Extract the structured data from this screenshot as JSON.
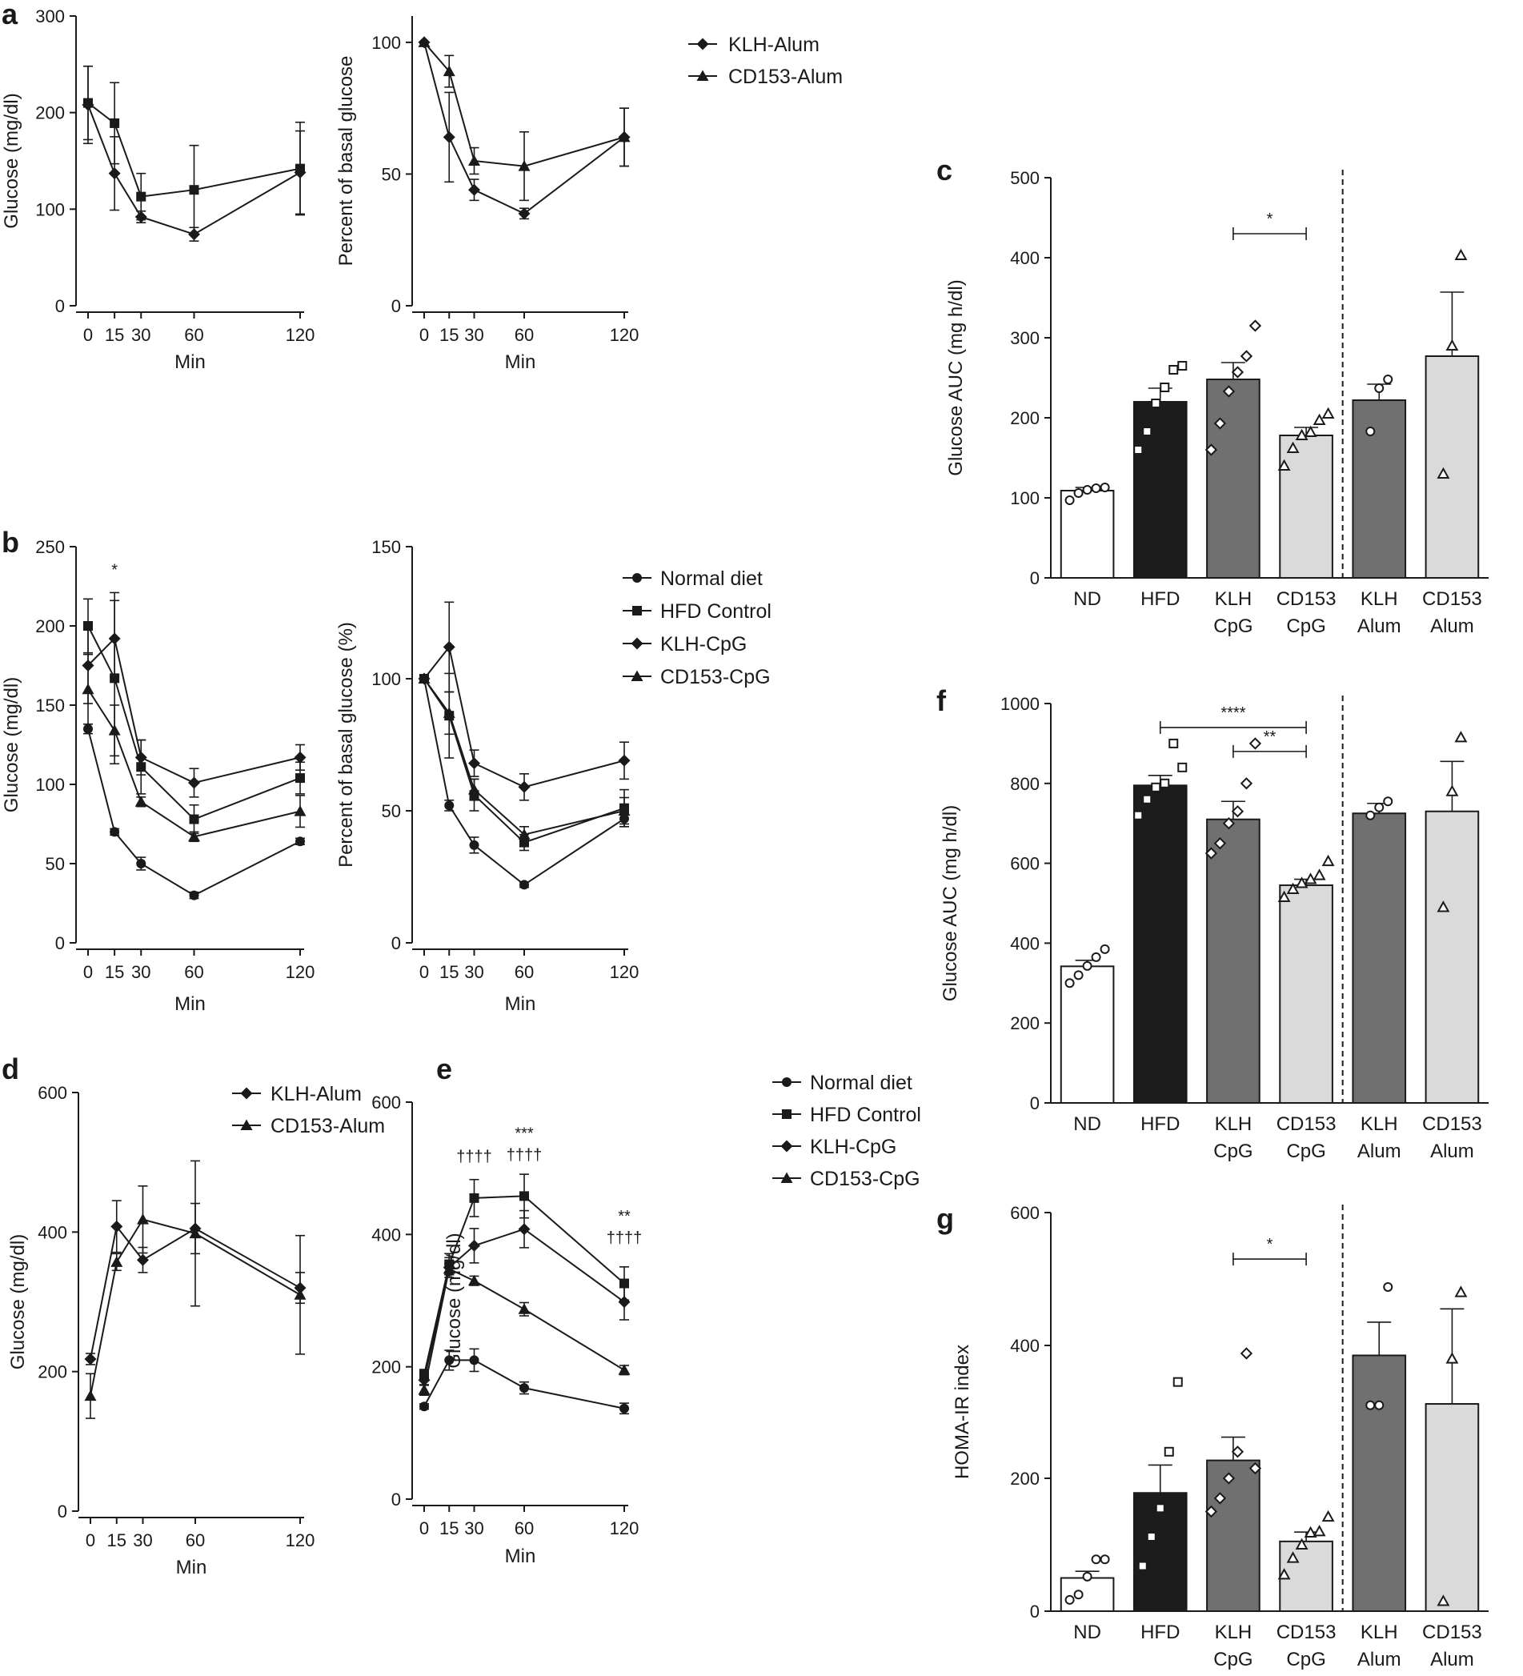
{
  "panel_letters": {
    "a": "a",
    "b": "b",
    "c": "c",
    "d": "d",
    "e": "e",
    "f": "f",
    "g": "g"
  },
  "chart_data": [
    {
      "id": "a-left",
      "type": "line",
      "letter": "a",
      "title": "",
      "xlabel": "Min",
      "ylabel": "Glucose (mg/dl)",
      "x": [
        0,
        15,
        30,
        60,
        120
      ],
      "xticks": [
        0,
        15,
        30,
        60,
        120
      ],
      "ylim": [
        0,
        300
      ],
      "yticks": [
        0,
        100,
        200,
        300
      ],
      "series": [
        {
          "name": "KLH-Alum",
          "marker": "diamond",
          "values": [
            208,
            137,
            92,
            74,
            138
          ],
          "errors": [
            40,
            38,
            6,
            7,
            43
          ]
        },
        {
          "name": "CD153-Alum",
          "marker": "square",
          "values": [
            210,
            189,
            113,
            120,
            142
          ],
          "errors": [
            38,
            42,
            24,
            46,
            48
          ]
        }
      ]
    },
    {
      "id": "a-right",
      "type": "line",
      "title": "",
      "xlabel": "Min",
      "ylabel": "Percent of basal glucose",
      "x": [
        0,
        15,
        30,
        60,
        120
      ],
      "xticks": [
        0,
        15,
        30,
        60,
        120
      ],
      "ylim": [
        0,
        110
      ],
      "yticks": [
        0,
        50,
        100
      ],
      "legend": {
        "position": "top-right",
        "entries": [
          "KLH-Alum",
          "CD153-Alum"
        ]
      },
      "series": [
        {
          "name": "KLH-Alum",
          "marker": "diamond",
          "values": [
            100,
            64,
            44,
            35,
            64
          ],
          "errors": [
            0,
            17,
            4,
            2,
            11
          ]
        },
        {
          "name": "CD153-Alum",
          "marker": "triangle",
          "values": [
            100,
            89,
            55,
            53,
            64
          ],
          "errors": [
            0,
            6,
            5,
            13,
            11
          ]
        }
      ]
    },
    {
      "id": "b-left",
      "type": "line",
      "letter": "b",
      "title": "",
      "xlabel": "Min",
      "ylabel": "Glucose (mg/dl)",
      "x": [
        0,
        15,
        30,
        60,
        120
      ],
      "xticks": [
        0,
        15,
        30,
        60,
        120
      ],
      "ylim": [
        0,
        250
      ],
      "yticks": [
        0,
        50,
        100,
        150,
        200,
        250
      ],
      "annotations": [
        {
          "text": "*",
          "x": 15,
          "y": 232
        }
      ],
      "series": [
        {
          "name": "Normal diet",
          "marker": "circle",
          "values": [
            135,
            70,
            50,
            30,
            64
          ],
          "errors": [
            3,
            2,
            4,
            2,
            2
          ]
        },
        {
          "name": "HFD Control",
          "marker": "square",
          "values": [
            200,
            167,
            111,
            78,
            104
          ],
          "errors": [
            17,
            54,
            17,
            9,
            10
          ]
        },
        {
          "name": "KLH-CpG",
          "marker": "diamond",
          "values": [
            175,
            192,
            117,
            101,
            117
          ],
          "errors": [
            24,
            24,
            11,
            9,
            8
          ]
        },
        {
          "name": "CD153-CpG",
          "marker": "triangle",
          "values": [
            160,
            134,
            89,
            67,
            83
          ],
          "errors": [
            22,
            16,
            3,
            3,
            10
          ]
        }
      ]
    },
    {
      "id": "b-right",
      "type": "line",
      "title": "",
      "xlabel": "Min",
      "ylabel": "Percent of basal glucose (%)",
      "x": [
        0,
        15,
        30,
        60,
        120
      ],
      "xticks": [
        0,
        15,
        30,
        60,
        120
      ],
      "ylim": [
        0,
        150
      ],
      "yticks": [
        0,
        50,
        100,
        150
      ],
      "legend": {
        "position": "top-right",
        "entries": [
          "Normal diet",
          "HFD Control",
          "KLH-CpG",
          "CD153-CpG"
        ]
      },
      "series": [
        {
          "name": "Normal diet",
          "marker": "circle",
          "values": [
            100,
            52,
            37,
            22,
            47
          ],
          "errors": [
            0,
            2,
            3,
            1,
            3
          ]
        },
        {
          "name": "HFD Control",
          "marker": "square",
          "values": [
            100,
            86,
            56,
            38,
            51
          ],
          "errors": [
            0,
            16,
            6,
            3,
            7
          ]
        },
        {
          "name": "KLH-CpG",
          "marker": "diamond",
          "values": [
            100,
            112,
            68,
            59,
            69
          ],
          "errors": [
            0,
            17,
            5,
            5,
            7
          ]
        },
        {
          "name": "CD153-CpG",
          "marker": "triangle",
          "values": [
            100,
            87,
            58,
            41,
            50
          ],
          "errors": [
            0,
            8,
            4,
            3,
            5
          ]
        }
      ]
    },
    {
      "id": "c",
      "type": "bar",
      "letter": "c",
      "title": "",
      "xlabel": "",
      "ylabel": "Glucose AUC (mg h/dl)",
      "categories": [
        [
          "ND"
        ],
        [
          "HFD"
        ],
        [
          "KLH",
          "CpG"
        ],
        [
          "CD153",
          "CpG"
        ],
        [
          "KLH",
          "Alum"
        ],
        [
          "CD153",
          "Alum"
        ]
      ],
      "values": [
        109,
        220,
        248,
        178,
        222,
        277
      ],
      "errors": [
        4,
        17,
        21,
        10,
        20,
        80
      ],
      "bar_colors": [
        "#ffffff",
        "#1c1c1c",
        "#707070",
        "#dadada",
        "#707070",
        "#dadada"
      ],
      "points": [
        [
          97,
          106,
          110,
          112,
          113
        ],
        [
          160,
          183,
          218,
          238,
          260,
          265
        ],
        [
          160,
          193,
          233,
          257,
          277,
          315
        ],
        [
          140,
          162,
          178,
          182,
          197,
          205
        ],
        [
          183,
          237,
          248
        ],
        [
          130,
          290,
          403
        ]
      ],
      "point_markers": [
        "circle",
        "square",
        "diamond",
        "triangle",
        "circle",
        "triangle"
      ],
      "ylim": [
        0,
        500
      ],
      "yticks": [
        0,
        100,
        200,
        300,
        400,
        500
      ],
      "divider_after": 3,
      "significance": [
        {
          "from": 2,
          "to": 3,
          "y": 430,
          "label": "*"
        }
      ]
    },
    {
      "id": "d",
      "type": "line",
      "letter": "d",
      "title": "",
      "xlabel": "Min",
      "ylabel": "Glucose (mg/dl)",
      "x": [
        0,
        15,
        30,
        60,
        120
      ],
      "xticks": [
        0,
        15,
        30,
        60,
        120
      ],
      "ylim": [
        0,
        600
      ],
      "yticks": [
        0,
        200,
        400,
        600
      ],
      "legend": {
        "position": "top-right",
        "entries": [
          "KLH-Alum",
          "CD153-Alum"
        ]
      },
      "series": [
        {
          "name": "KLH-Alum",
          "marker": "diamond",
          "values": [
            218,
            408,
            360,
            405,
            320
          ],
          "errors": [
            8,
            37,
            18,
            36,
            22
          ]
        },
        {
          "name": "CD153-Alum",
          "marker": "triangle",
          "values": [
            165,
            357,
            418,
            398,
            310
          ],
          "errors": [
            32,
            12,
            48,
            104,
            85
          ]
        }
      ]
    },
    {
      "id": "e",
      "type": "line",
      "letter": "e",
      "title": "",
      "xlabel": "Min",
      "ylabel": "Glucose (mg/dl)",
      "x": [
        0,
        15,
        30,
        60,
        120
      ],
      "xticks": [
        0,
        15,
        30,
        60,
        120
      ],
      "ylim": [
        0,
        600
      ],
      "yticks": [
        0,
        200,
        400,
        600
      ],
      "legend": {
        "position": "top-right",
        "entries": [
          "Normal diet",
          "HFD Control",
          "KLH-CpG",
          "CD153-CpG"
        ]
      },
      "annotations": [
        {
          "text": "††††",
          "x": 30,
          "y": 510
        },
        {
          "text": "***",
          "x": 60,
          "y": 545
        },
        {
          "text": "††††",
          "x": 60,
          "y": 512
        },
        {
          "text": "**",
          "x": 120,
          "y": 420
        },
        {
          "text": "††††",
          "x": 120,
          "y": 387
        }
      ],
      "series": [
        {
          "name": "Normal diet",
          "marker": "circle",
          "values": [
            140,
            210,
            210,
            168,
            137
          ],
          "errors": [
            4,
            15,
            17,
            9,
            8
          ]
        },
        {
          "name": "HFD Control",
          "marker": "square",
          "values": [
            188,
            355,
            455,
            458,
            326
          ],
          "errors": [
            8,
            16,
            28,
            33,
            25
          ]
        },
        {
          "name": "KLH-CpG",
          "marker": "diamond",
          "values": [
            180,
            350,
            383,
            408,
            298
          ],
          "errors": [
            8,
            15,
            26,
            28,
            27
          ]
        },
        {
          "name": "CD153-CpG",
          "marker": "triangle",
          "values": [
            165,
            348,
            330,
            287,
            195
          ],
          "errors": [
            8,
            8,
            7,
            10,
            7
          ]
        }
      ]
    },
    {
      "id": "f",
      "type": "bar",
      "letter": "f",
      "title": "",
      "xlabel": "",
      "ylabel": "Glucose AUC (mg h/dl)",
      "categories": [
        [
          "ND"
        ],
        [
          "HFD"
        ],
        [
          "KLH",
          "CpG"
        ],
        [
          "CD153",
          "CpG"
        ],
        [
          "KLH",
          "Alum"
        ],
        [
          "CD153",
          "Alum"
        ]
      ],
      "values": [
        342,
        795,
        710,
        545,
        725,
        730
      ],
      "errors": [
        15,
        25,
        45,
        15,
        25,
        125
      ],
      "bar_colors": [
        "#ffffff",
        "#1c1c1c",
        "#707070",
        "#dadada",
        "#707070",
        "#dadada"
      ],
      "points": [
        [
          300,
          320,
          343,
          365,
          385
        ],
        [
          720,
          760,
          790,
          800,
          900,
          840
        ],
        [
          625,
          650,
          700,
          730,
          800,
          900
        ],
        [
          515,
          535,
          550,
          560,
          570,
          605
        ],
        [
          720,
          740,
          755
        ],
        [
          490,
          780,
          915
        ]
      ],
      "point_markers": [
        "circle",
        "square",
        "diamond",
        "triangle",
        "circle",
        "triangle"
      ],
      "ylim": [
        0,
        1000
      ],
      "yticks": [
        0,
        200,
        400,
        600,
        800,
        1000
      ],
      "divider_after": 3,
      "significance": [
        {
          "from": 1,
          "to": 3,
          "y": 940,
          "label": "****"
        },
        {
          "from": 2,
          "to": 3,
          "y": 880,
          "label": "**"
        }
      ]
    },
    {
      "id": "g",
      "type": "bar",
      "letter": "g",
      "title": "",
      "xlabel": "",
      "ylabel": "HOMA-IR index",
      "categories": [
        [
          "ND"
        ],
        [
          "HFD"
        ],
        [
          "KLH",
          "CpG"
        ],
        [
          "CD153",
          "CpG"
        ],
        [
          "KLH",
          "Alum"
        ],
        [
          "CD153",
          "Alum"
        ]
      ],
      "values": [
        50,
        178,
        227,
        105,
        385,
        312
      ],
      "errors": [
        10,
        42,
        35,
        14,
        50,
        143
      ],
      "bar_colors": [
        "#ffffff",
        "#1c1c1c",
        "#707070",
        "#dadada",
        "#707070",
        "#dadada"
      ],
      "points": [
        [
          17,
          25,
          52,
          78,
          78
        ],
        [
          68,
          112,
          155,
          240,
          345
        ],
        [
          150,
          170,
          200,
          240,
          388,
          215
        ],
        [
          55,
          80,
          100,
          118,
          120,
          142
        ],
        [
          310,
          310,
          488
        ],
        [
          15,
          380,
          480
        ]
      ],
      "point_markers": [
        "circle",
        "square",
        "diamond",
        "triangle",
        "circle",
        "triangle"
      ],
      "ylim": [
        0,
        600
      ],
      "yticks": [
        0,
        200,
        400,
        600
      ],
      "divider_after": 3,
      "significance": [
        {
          "from": 2,
          "to": 3,
          "y": 530,
          "label": "*"
        }
      ]
    }
  ]
}
